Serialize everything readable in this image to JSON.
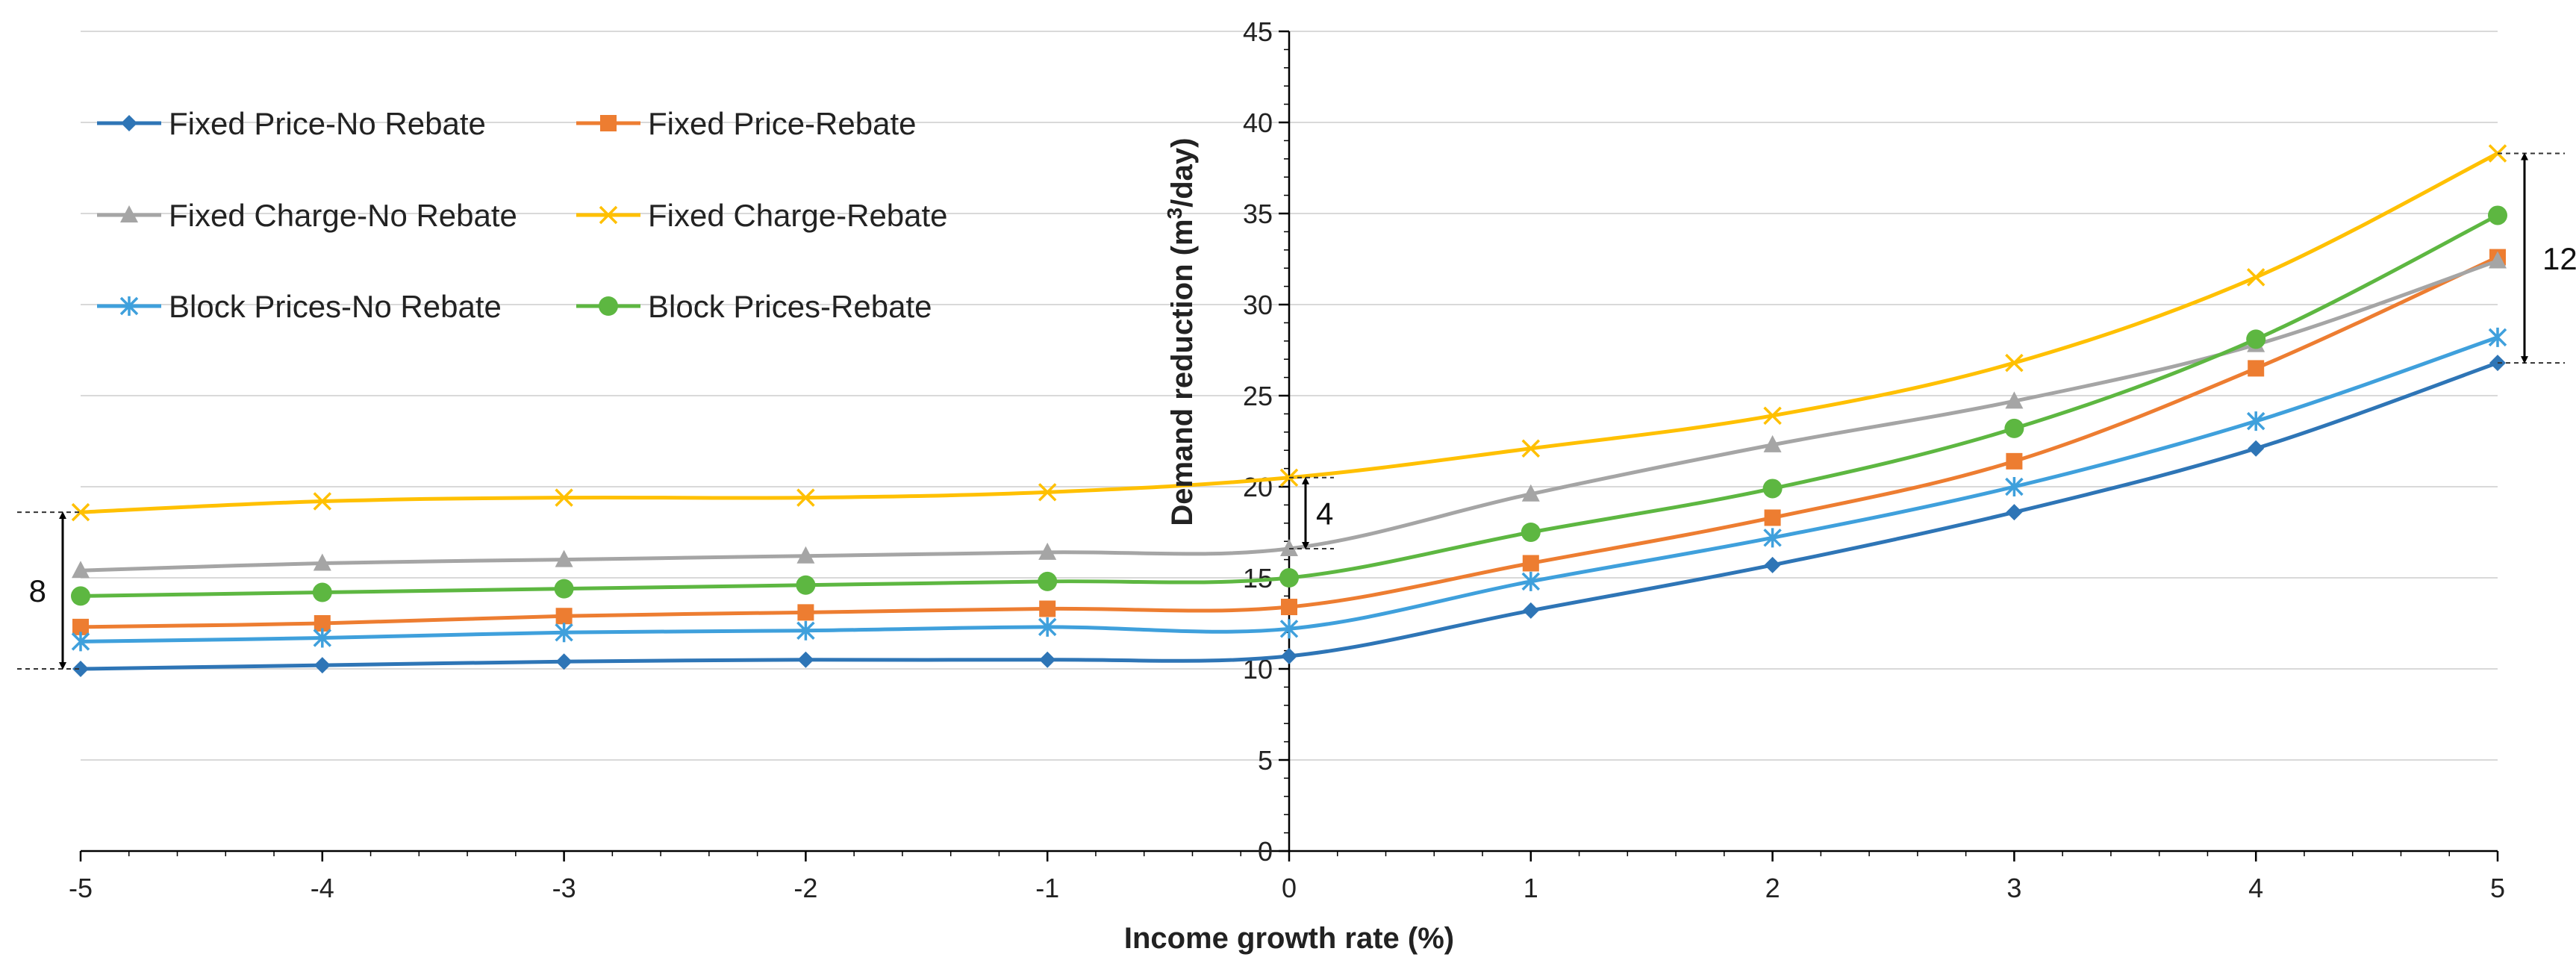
{
  "chart_data": {
    "type": "line",
    "title": "",
    "xlabel": "Income growth rate (%)",
    "ylabel": "Demand reduction (m³/day)",
    "ylabel_main": "Demand reduction (m",
    "ylabel_sup": "3",
    "ylabel_end": "/day)",
    "x": [
      -5,
      -4,
      -3,
      -2,
      -1,
      0,
      1,
      2,
      3,
      4,
      5
    ],
    "x_tick_labels": [
      "-5",
      "-4",
      "-3",
      "-2",
      "-1",
      "0",
      "1",
      "2",
      "3",
      "4",
      "5"
    ],
    "xlim": [
      -5,
      5
    ],
    "ylim": [
      0,
      45
    ],
    "y_ticks": [
      0,
      5,
      10,
      15,
      20,
      25,
      30,
      35,
      40,
      45
    ],
    "y_tick_labels": [
      "0",
      "5",
      "10",
      "15",
      "20",
      "25",
      "30",
      "35",
      "40",
      "45"
    ],
    "grid": true,
    "legend_position": "top-left",
    "series": [
      {
        "name": "Fixed Price-No Rebate",
        "color": "#2E75B6",
        "marker": "diamond",
        "values": [
          10.0,
          10.2,
          10.4,
          10.5,
          10.5,
          10.7,
          13.2,
          15.7,
          18.6,
          22.1,
          26.8
        ]
      },
      {
        "name": "Fixed Price-Rebate",
        "color": "#ED7D31",
        "marker": "square",
        "values": [
          12.3,
          12.5,
          12.9,
          13.1,
          13.3,
          13.4,
          15.8,
          18.3,
          21.4,
          26.5,
          32.6
        ]
      },
      {
        "name": "Fixed Charge-No Rebate",
        "color": "#A5A5A5",
        "marker": "triangle",
        "values": [
          15.4,
          15.8,
          16.0,
          16.2,
          16.4,
          16.6,
          19.6,
          22.3,
          24.7,
          27.8,
          32.4
        ]
      },
      {
        "name": "Fixed Charge-Rebate",
        "color": "#FFC000",
        "marker": "x",
        "values": [
          18.6,
          19.2,
          19.4,
          19.4,
          19.7,
          20.5,
          22.1,
          23.9,
          26.8,
          31.5,
          38.3
        ]
      },
      {
        "name": "Block Prices-No Rebate",
        "color": "#3FA0DC",
        "marker": "star",
        "values": [
          11.5,
          11.7,
          12.0,
          12.1,
          12.3,
          12.2,
          14.8,
          17.2,
          20.0,
          23.6,
          28.2
        ]
      },
      {
        "name": "Block Prices-Rebate",
        "color": "#5DB741",
        "marker": "circle",
        "values": [
          14.0,
          14.2,
          14.4,
          14.6,
          14.8,
          15.0,
          17.5,
          19.9,
          23.2,
          28.1,
          34.9
        ]
      }
    ],
    "annotations": [
      {
        "label": "8",
        "at_x": -5,
        "from_y": 10.0,
        "to_y": 18.6
      },
      {
        "label": "4",
        "at_x": 0,
        "from_y": 16.6,
        "to_y": 20.5
      },
      {
        "label": "12",
        "at_x": 5,
        "from_y": 26.8,
        "to_y": 38.3
      }
    ]
  }
}
